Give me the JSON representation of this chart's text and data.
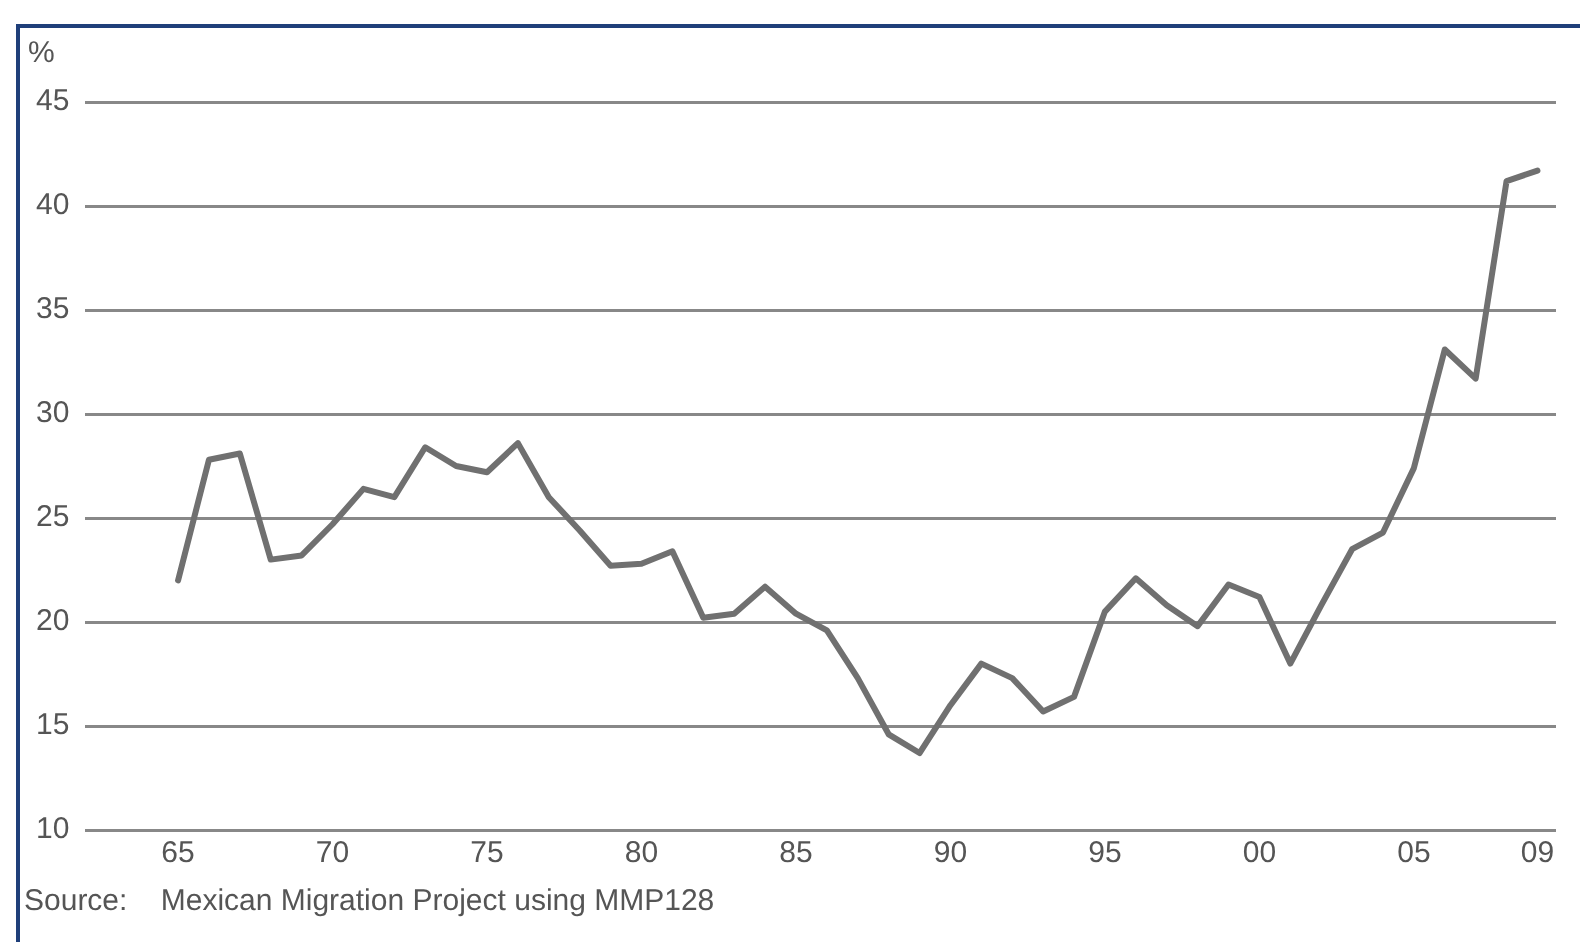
{
  "chart_data": {
    "type": "line",
    "ylabel": "%",
    "x": [
      1965,
      1966,
      1967,
      1968,
      1969,
      1970,
      1971,
      1972,
      1973,
      1974,
      1975,
      1976,
      1977,
      1978,
      1979,
      1980,
      1981,
      1982,
      1983,
      1984,
      1985,
      1986,
      1987,
      1988,
      1989,
      1990,
      1991,
      1992,
      1993,
      1994,
      1995,
      1996,
      1997,
      1998,
      1999,
      2000,
      2001,
      2002,
      2003,
      2004,
      2005,
      2006,
      2007,
      2008,
      2009
    ],
    "series": [
      {
        "color": "#707070",
        "values": [
          22.0,
          27.8,
          28.1,
          23.0,
          23.2,
          24.7,
          26.4,
          26.0,
          28.4,
          27.5,
          27.2,
          28.6,
          26.0,
          24.4,
          22.7,
          22.8,
          23.4,
          20.2,
          20.4,
          21.7,
          20.4,
          19.6,
          17.3,
          14.6,
          13.7,
          16.0,
          18.0,
          17.3,
          15.7,
          16.4,
          20.5,
          22.1,
          20.8,
          19.8,
          21.8,
          21.2,
          18.0,
          20.8,
          23.5,
          24.3,
          27.4,
          33.1,
          31.7,
          41.2,
          41.7
        ]
      }
    ],
    "xlim": [
      1962,
      2009.6
    ],
    "xticks": [
      {
        "value": 1965,
        "label": "65"
      },
      {
        "value": 1970,
        "label": "70"
      },
      {
        "value": 1975,
        "label": "75"
      },
      {
        "value": 1980,
        "label": "80"
      },
      {
        "value": 1985,
        "label": "85"
      },
      {
        "value": 1990,
        "label": "90"
      },
      {
        "value": 1995,
        "label": "95"
      },
      {
        "value": 2000,
        "label": "00"
      },
      {
        "value": 2005,
        "label": "05"
      },
      {
        "value": 2009,
        "label": "09"
      }
    ],
    "ylim": [
      10,
      45
    ],
    "yticks": [
      10,
      15,
      20,
      25,
      30,
      35,
      40,
      45
    ],
    "grid": "y",
    "legend": false,
    "marker": "none",
    "line_style": "solid",
    "annotations": [
      "Source:    Mexican Migration Project using MMP128"
    ]
  }
}
